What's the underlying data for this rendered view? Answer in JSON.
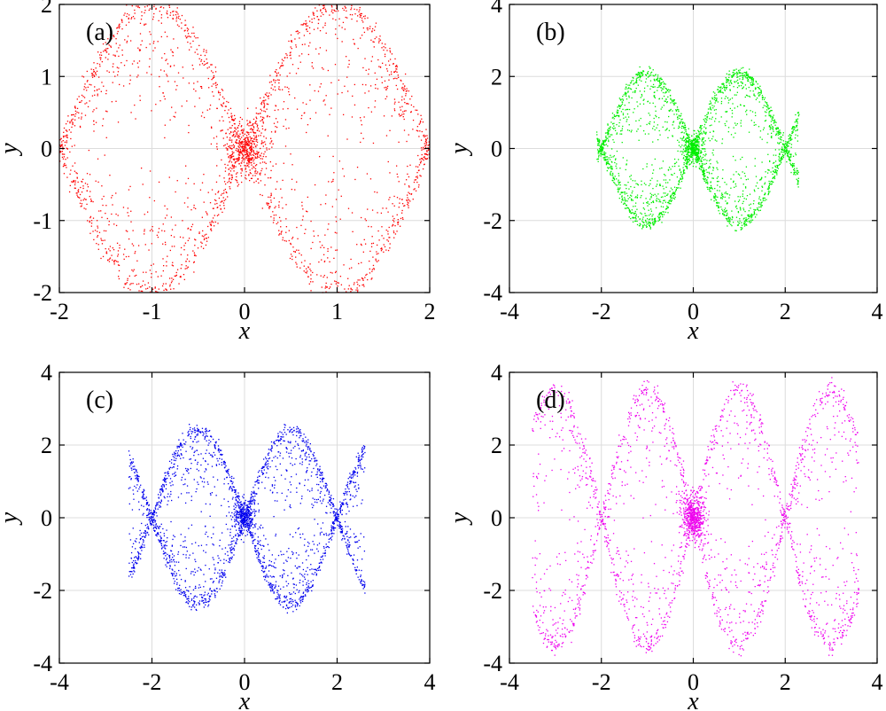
{
  "chart_data": [
    {
      "type": "scatter",
      "panel_label": "(a)",
      "color": "#ff0000",
      "xlabel": "x",
      "ylabel": "y",
      "xlim": [
        -2,
        2
      ],
      "ylim": [
        -2,
        2
      ],
      "xticks": [
        -2,
        -1,
        0,
        1,
        2
      ],
      "yticks": [
        -2,
        -1,
        0,
        1,
        2
      ],
      "xtick_labels": [
        "-2",
        "-1",
        "0",
        "1",
        "2"
      ],
      "ytick_labels": [
        "-2",
        "-1",
        "0",
        "1",
        "2"
      ],
      "grid": true,
      "pattern": {
        "amplitude": 2.0,
        "x_extent": [
          -2,
          2
        ],
        "period": 2,
        "center_cluster": 0.15
      }
    },
    {
      "type": "scatter",
      "panel_label": "(b)",
      "color": "#00ee00",
      "xlabel": "x",
      "ylabel": "y",
      "xlim": [
        -4,
        4
      ],
      "ylim": [
        -4,
        4
      ],
      "xticks": [
        -4,
        -2,
        0,
        2,
        4
      ],
      "yticks": [
        -4,
        -2,
        0,
        2,
        4
      ],
      "xtick_labels": [
        "-4",
        "-2",
        "0",
        "2",
        "4"
      ],
      "ytick_labels": [
        "-4",
        "-2",
        "0",
        "2",
        "4"
      ],
      "grid": true,
      "pattern": {
        "amplitude": 2.1,
        "x_extent": [
          -2.1,
          2.3
        ],
        "period": 2,
        "center_cluster": 0.1
      }
    },
    {
      "type": "scatter",
      "panel_label": "(c)",
      "color": "#0000ee",
      "xlabel": "x",
      "ylabel": "y",
      "xlim": [
        -4,
        4
      ],
      "ylim": [
        -4,
        4
      ],
      "xticks": [
        -4,
        -2,
        0,
        2,
        4
      ],
      "yticks": [
        -4,
        -2,
        0,
        2,
        4
      ],
      "xtick_labels": [
        "-4",
        "-2",
        "0",
        "2",
        "4"
      ],
      "ytick_labels": [
        "-4",
        "-2",
        "0",
        "2",
        "4"
      ],
      "grid": true,
      "pattern": {
        "amplitude": 2.4,
        "x_extent": [
          -2.5,
          2.6
        ],
        "period": 2,
        "center_cluster": 0.1
      }
    },
    {
      "type": "scatter",
      "panel_label": "(d)",
      "color": "#ee00ee",
      "xlabel": "x",
      "ylabel": "y",
      "xlim": [
        -4,
        4
      ],
      "ylim": [
        -4,
        4
      ],
      "xticks": [
        -4,
        -2,
        0,
        2,
        4
      ],
      "yticks": [
        -4,
        -2,
        0,
        2,
        4
      ],
      "xtick_labels": [
        "-4",
        "-2",
        "0",
        "2",
        "4"
      ],
      "ytick_labels": [
        "-4",
        "-2",
        "0",
        "2",
        "4"
      ],
      "grid": true,
      "pattern": {
        "amplitude": 3.5,
        "x_extent": [
          -3.5,
          3.6
        ],
        "period": 2,
        "center_cluster": 0.2
      }
    }
  ]
}
